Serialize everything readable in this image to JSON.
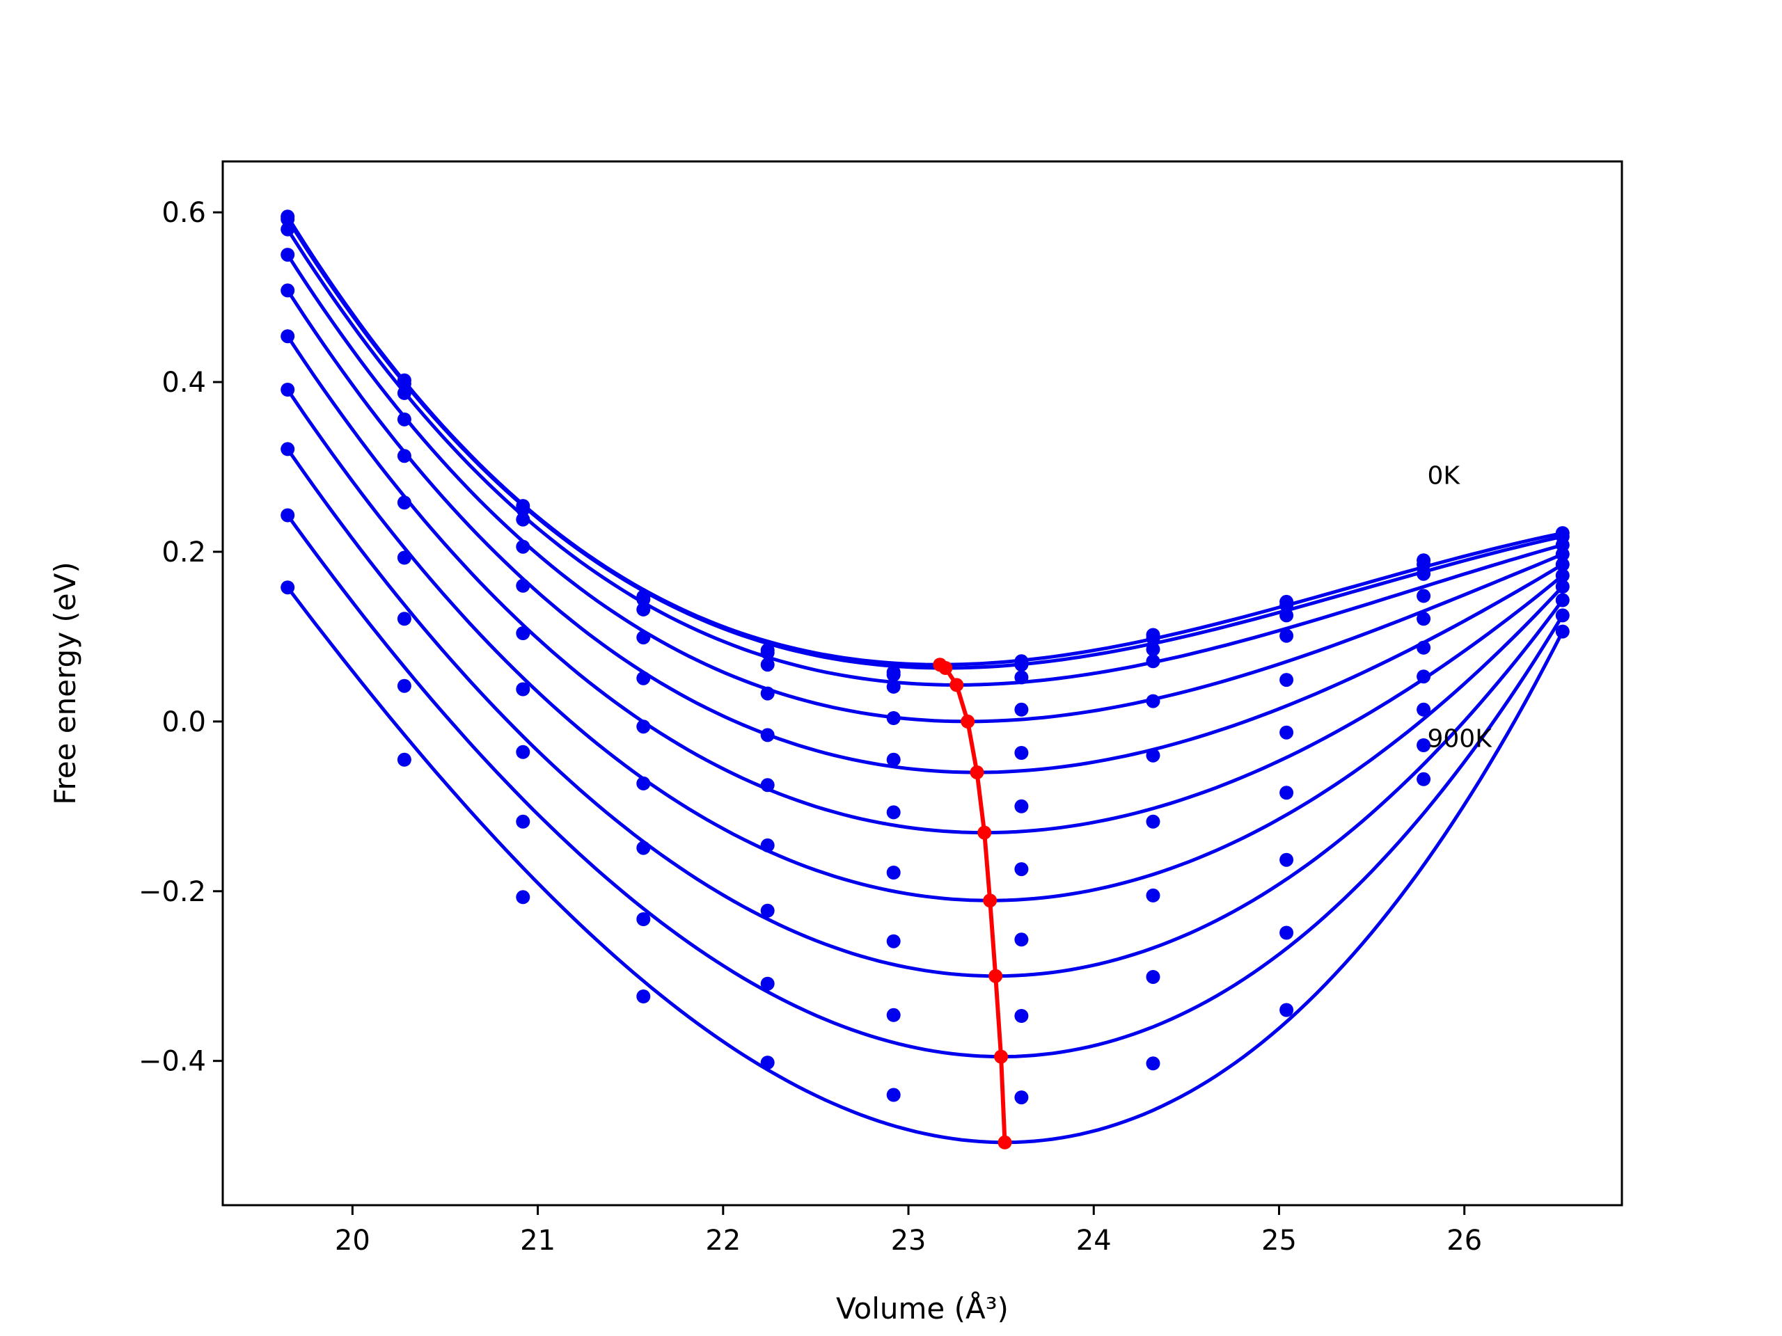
{
  "chart_data": {
    "type": "line",
    "title": "",
    "xlabel": "Volume (Å³)",
    "ylabel": "Free energy (eV)",
    "xlim": [
      19.3,
      26.85
    ],
    "ylim": [
      -0.57,
      0.66
    ],
    "xticks": [
      20,
      21,
      22,
      23,
      24,
      25,
      26
    ],
    "xtick_labels": [
      "20",
      "21",
      "22",
      "23",
      "24",
      "25",
      "26"
    ],
    "yticks": [
      -0.4,
      -0.2,
      0.0,
      0.2,
      0.4,
      0.6
    ],
    "ytick_labels": [
      "−0.4",
      "−0.2",
      "0.0",
      "0.2",
      "0.4",
      "0.6"
    ],
    "grid": false,
    "legend": "none",
    "annotations": [
      {
        "text": "0K",
        "x": 25.8,
        "y": 0.28
      },
      {
        "text": "900K",
        "x": 25.8,
        "y": -0.03
      }
    ],
    "colors": {
      "fit": "#0000ee",
      "points": "#0000ee",
      "minimum": "#ff0000"
    },
    "x_points": [
      19.65,
      20.28,
      20.92,
      21.57,
      22.24,
      22.92,
      23.61,
      24.32,
      25.04,
      25.78,
      26.53
    ],
    "series": [
      {
        "values": [
          0.595,
          0.402,
          0.254,
          0.147,
          0.084,
          0.058,
          0.071,
          0.102,
          0.141,
          0.19,
          0.222
        ]
      },
      {
        "values": [
          0.592,
          0.398,
          0.25,
          0.144,
          0.081,
          0.055,
          0.067,
          0.098,
          0.137,
          0.185,
          0.218
        ]
      },
      {
        "values": [
          0.58,
          0.387,
          0.238,
          0.132,
          0.067,
          0.041,
          0.052,
          0.085,
          0.125,
          0.174,
          0.208
        ]
      },
      {
        "values": [
          0.55,
          0.356,
          0.206,
          0.099,
          0.033,
          0.004,
          0.014,
          0.071,
          0.101,
          0.148,
          0.197
        ]
      },
      {
        "values": [
          0.508,
          0.313,
          0.16,
          0.051,
          -0.016,
          -0.045,
          -0.037,
          0.024,
          0.049,
          0.121,
          0.185
        ]
      },
      {
        "values": [
          0.454,
          0.258,
          0.104,
          -0.006,
          -0.075,
          -0.107,
          -0.1,
          -0.04,
          -0.013,
          0.087,
          0.172
        ]
      },
      {
        "values": [
          0.391,
          0.193,
          0.038,
          -0.073,
          -0.146,
          -0.178,
          -0.174,
          -0.118,
          -0.084,
          0.053,
          0.159
        ]
      },
      {
        "values": [
          0.321,
          0.121,
          -0.036,
          -0.149,
          -0.223,
          -0.259,
          -0.257,
          -0.205,
          -0.163,
          0.014,
          0.143
        ]
      },
      {
        "values": [
          0.243,
          0.042,
          -0.118,
          -0.233,
          -0.309,
          -0.346,
          -0.347,
          -0.301,
          -0.249,
          -0.028,
          0.125
        ]
      },
      {
        "values": [
          0.158,
          -0.045,
          -0.207,
          -0.324,
          -0.402,
          -0.44,
          -0.443,
          -0.403,
          -0.34,
          -0.068,
          0.106
        ]
      }
    ],
    "fits": [
      {
        "x0": 23.17,
        "e0": 0.067
      },
      {
        "x0": 23.2,
        "e0": 0.063
      },
      {
        "x0": 23.26,
        "e0": 0.043
      },
      {
        "x0": 23.32,
        "e0": 0.0
      },
      {
        "x0": 23.37,
        "e0": -0.06
      },
      {
        "x0": 23.41,
        "e0": -0.131
      },
      {
        "x0": 23.44,
        "e0": -0.211
      },
      {
        "x0": 23.47,
        "e0": -0.3
      },
      {
        "x0": 23.5,
        "e0": -0.395
      },
      {
        "x0": 23.52,
        "e0": -0.496
      }
    ],
    "minimum_curve": {
      "x": [
        23.17,
        23.2,
        23.26,
        23.32,
        23.37,
        23.41,
        23.44,
        23.47,
        23.5,
        23.52
      ],
      "y": [
        0.067,
        0.063,
        0.043,
        0.0,
        -0.06,
        -0.131,
        -0.211,
        -0.3,
        -0.395,
        -0.496
      ]
    }
  }
}
